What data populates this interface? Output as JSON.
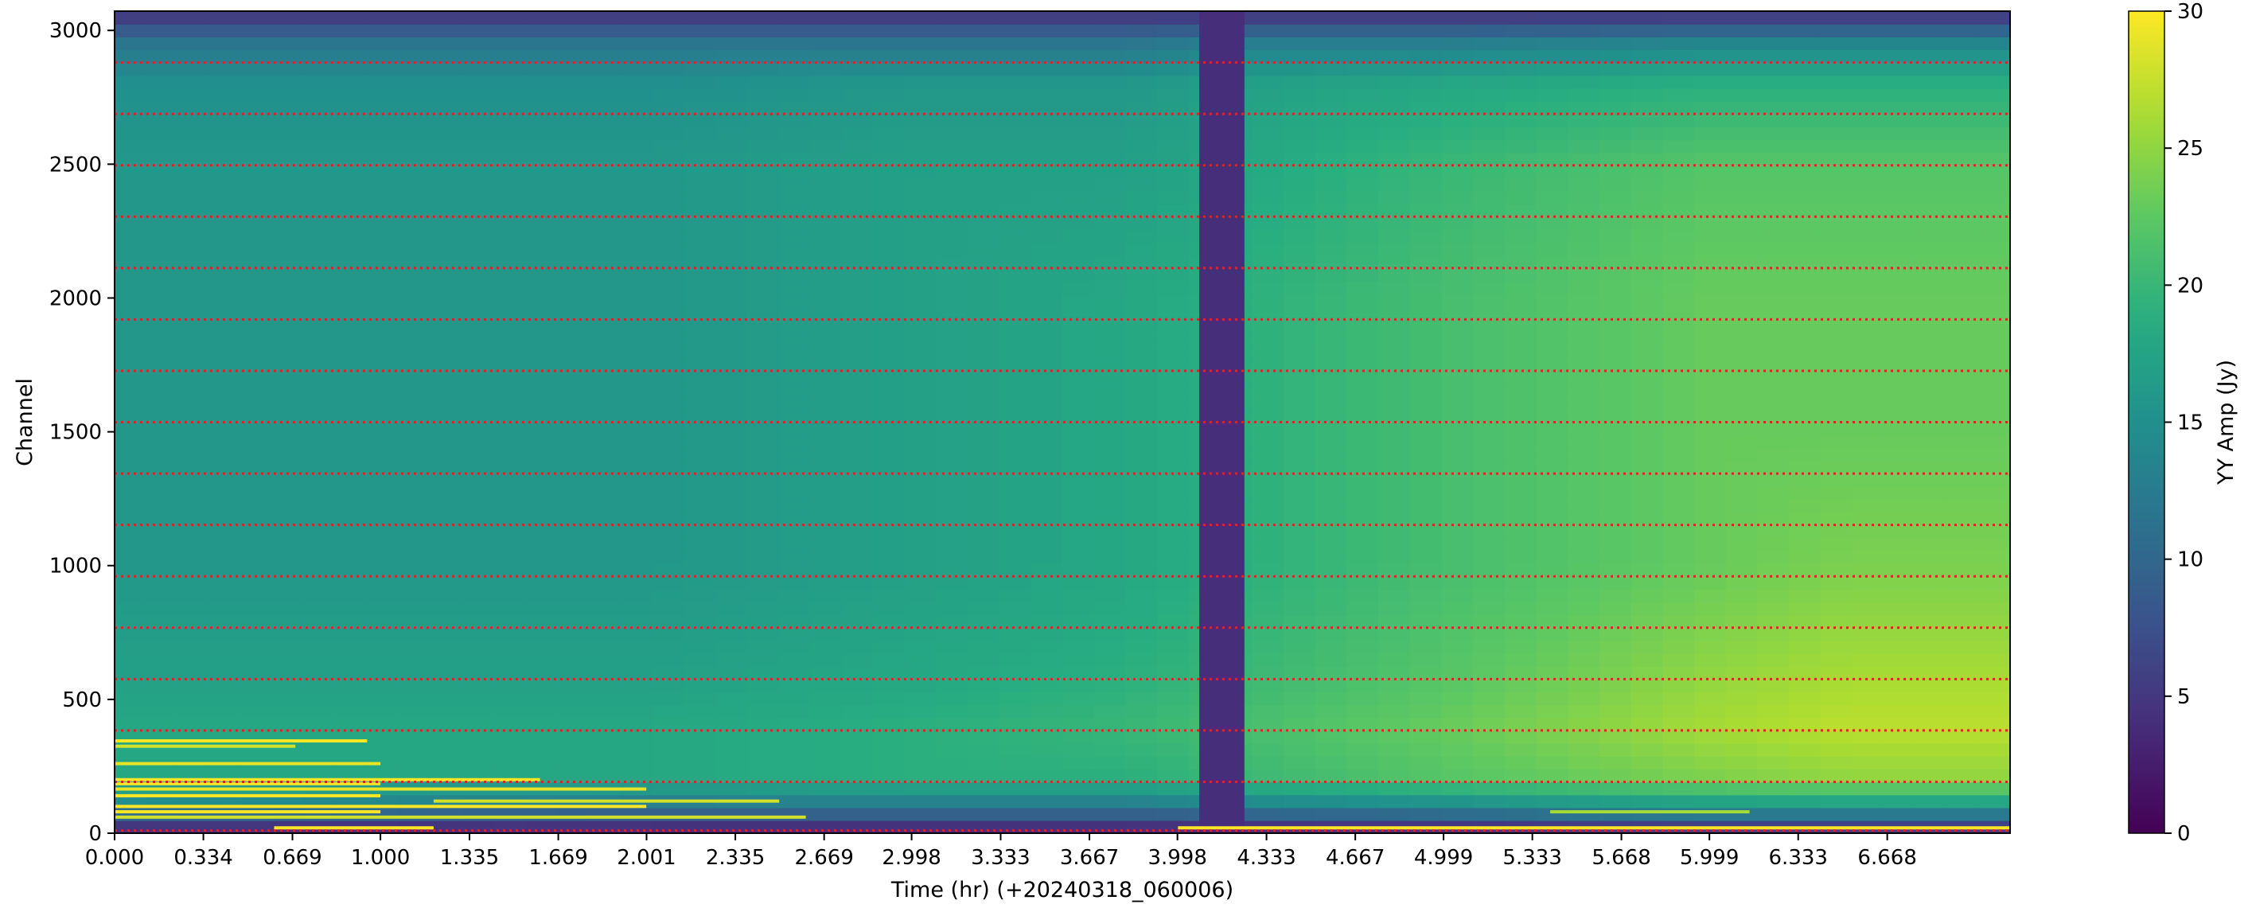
{
  "chart_data": {
    "type": "heatmap",
    "title": "",
    "xlabel": "Time (hr) (+20240318_060006)",
    "ylabel": "Channel",
    "xlim": [
      0.0,
      7.13
    ],
    "ylim": [
      0,
      3072
    ],
    "x_ticks": [
      0.0,
      0.334,
      0.669,
      1.0,
      1.335,
      1.669,
      2.001,
      2.335,
      2.669,
      2.998,
      3.333,
      3.667,
      3.998,
      4.333,
      4.667,
      4.999,
      5.333,
      5.668,
      5.999,
      6.333,
      6.668
    ],
    "x_tick_labels": [
      "0.000",
      "0.334",
      "0.669",
      "1.000",
      "1.335",
      "1.669",
      "2.001",
      "2.335",
      "2.669",
      "2.998",
      "3.333",
      "3.667",
      "3.998",
      "4.333",
      "4.667",
      "4.999",
      "5.333",
      "5.668",
      "5.999",
      "6.333",
      "6.668"
    ],
    "y_ticks": [
      0,
      500,
      1000,
      1500,
      2000,
      2500,
      3000
    ],
    "y_tick_labels": [
      "0",
      "500",
      "1000",
      "1500",
      "2000",
      "2500",
      "3000"
    ],
    "colormap": "viridis",
    "colorbar": {
      "label": "YY Amp (Jy)",
      "range": [
        0,
        30
      ],
      "ticks": [
        0,
        5,
        10,
        15,
        20,
        25,
        30
      ],
      "tick_labels": [
        "0",
        "5",
        "10",
        "15",
        "20",
        "25",
        "30"
      ]
    },
    "amplitude_grid": {
      "time_hr": [
        0.0,
        1.0,
        2.0,
        3.0,
        3.8,
        4.2,
        5.0,
        6.0,
        6.5,
        7.13
      ],
      "channel": [
        0,
        100,
        200,
        400,
        600,
        1000,
        1500,
        2000,
        2500,
        2800,
        2950,
        3072
      ],
      "yy_amp_jy": [
        [
          2,
          2,
          2,
          2,
          2,
          2,
          2,
          3,
          3,
          3
        ],
        [
          14,
          13,
          12,
          12,
          12,
          13,
          14,
          16,
          16,
          16
        ],
        [
          18,
          18,
          18,
          19,
          19,
          20,
          22,
          24,
          25,
          25
        ],
        [
          18,
          18,
          18,
          19,
          20,
          21,
          23,
          26,
          27,
          27
        ],
        [
          17,
          17,
          17,
          18,
          19,
          20,
          22,
          25,
          26,
          26
        ],
        [
          16,
          16,
          16,
          17,
          18,
          19,
          21,
          23,
          24,
          24
        ],
        [
          16,
          16,
          16,
          17,
          18,
          19,
          21,
          23,
          23,
          23
        ],
        [
          16,
          16,
          16,
          17,
          18,
          19,
          21,
          23,
          23,
          23
        ],
        [
          16,
          16,
          16,
          17,
          17,
          18,
          20,
          22,
          22,
          22
        ],
        [
          15,
          15,
          15,
          16,
          16,
          17,
          18,
          19,
          19,
          19
        ],
        [
          12,
          12,
          12,
          12,
          12,
          13,
          13,
          14,
          14,
          14
        ],
        [
          4,
          4,
          4,
          4,
          4,
          4,
          4,
          4,
          4,
          4
        ]
      ]
    },
    "flagged_time_band_hr": [
      4.08,
      4.25
    ],
    "flagged_band_amp_jy": 4,
    "rfi_streaks": [
      {
        "t0": 0.0,
        "t1": 0.95,
        "ch": 345,
        "amp": 30
      },
      {
        "t0": 0.0,
        "t1": 0.68,
        "ch": 325,
        "amp": 28
      },
      {
        "t0": 0.0,
        "t1": 1.0,
        "ch": 260,
        "amp": 29
      },
      {
        "t0": 0.0,
        "t1": 1.6,
        "ch": 200,
        "amp": 30
      },
      {
        "t0": 0.0,
        "t1": 1.0,
        "ch": 185,
        "amp": 30
      },
      {
        "t0": 0.0,
        "t1": 2.0,
        "ch": 165,
        "amp": 29
      },
      {
        "t0": 0.0,
        "t1": 1.0,
        "ch": 140,
        "amp": 30
      },
      {
        "t0": 1.2,
        "t1": 2.5,
        "ch": 120,
        "amp": 28
      },
      {
        "t0": 0.0,
        "t1": 2.0,
        "ch": 100,
        "amp": 30
      },
      {
        "t0": 0.0,
        "t1": 1.0,
        "ch": 80,
        "amp": 30
      },
      {
        "t0": 0.0,
        "t1": 2.6,
        "ch": 60,
        "amp": 28
      },
      {
        "t0": 5.4,
        "t1": 6.15,
        "ch": 80,
        "amp": 26
      },
      {
        "t0": 4.0,
        "t1": 7.13,
        "ch": 20,
        "amp": 30
      },
      {
        "t0": 0.6,
        "t1": 1.2,
        "ch": 20,
        "amp": 30
      }
    ],
    "reference_lines_channel": [
      10,
      192,
      384,
      576,
      768,
      960,
      1152,
      1344,
      1536,
      1728,
      1920,
      2112,
      2304,
      2496,
      2688,
      2880
    ],
    "reference_line_color": "#d62728",
    "grid": false,
    "legend": "none"
  }
}
